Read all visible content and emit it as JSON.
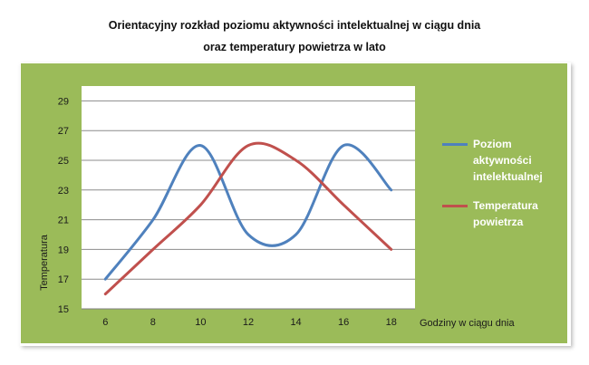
{
  "title_line1": "Orientacyjny rozkład poziomu aktywności intelektualnej w ciągu dnia",
  "title_line2": "oraz temperatury powietrza w lato",
  "colors": {
    "background": "#9bbb59",
    "plot": "#ffffff",
    "grid": "#8c8c8c",
    "series1": "#4f81bd",
    "series2": "#c0504d"
  },
  "chart_data": {
    "type": "line",
    "xlabel": "Godziny w ciągu dnia",
    "ylabel": "Temperatura",
    "xlim": [
      5,
      19
    ],
    "ylim": [
      15,
      30
    ],
    "x_ticks": [
      6,
      8,
      10,
      12,
      14,
      16,
      18
    ],
    "y_ticks": [
      15,
      17,
      19,
      21,
      23,
      25,
      27,
      29
    ],
    "legend_position": "right",
    "grid": true,
    "smooth": true,
    "series": [
      {
        "name": "Poziom aktywności intelektualnej",
        "name_lines": [
          "Poziom",
          "aktywności",
          "intelektualnej"
        ],
        "color": "#4f81bd",
        "x": [
          6,
          8,
          10,
          12,
          14,
          16,
          18
        ],
        "y": [
          17,
          21,
          26,
          20,
          20,
          26,
          23
        ]
      },
      {
        "name": "Temperatura powietrza",
        "name_lines": [
          "Temperatura",
          "powietrza"
        ],
        "color": "#c0504d",
        "x": [
          6,
          8,
          10,
          12,
          14,
          16,
          18
        ],
        "y": [
          16,
          19,
          22,
          26,
          25,
          22,
          19
        ]
      }
    ]
  }
}
